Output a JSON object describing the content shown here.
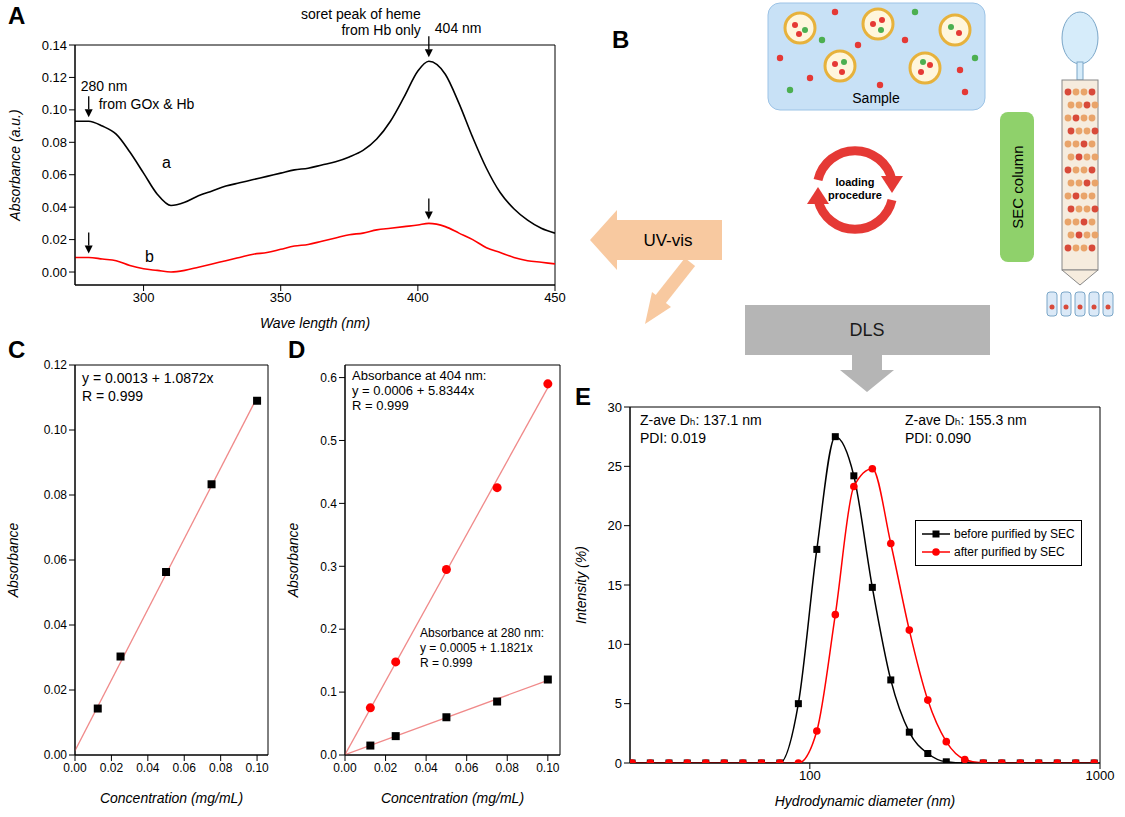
{
  "chart_data": [
    {
      "panel": "A",
      "type": "line",
      "x_label": "Wave length (nm)",
      "y_label": "Absorbance (a.u.)",
      "x": [
        275,
        280,
        285,
        290,
        295,
        300,
        305,
        310,
        315,
        320,
        325,
        330,
        335,
        340,
        345,
        350,
        355,
        360,
        365,
        370,
        375,
        380,
        385,
        390,
        395,
        400,
        404,
        410,
        415,
        420,
        425,
        430,
        435,
        440,
        445,
        450
      ],
      "series": [
        {
          "name": "a",
          "color": "#000000",
          "values": [
            0.093,
            0.093,
            0.09,
            0.085,
            0.074,
            0.061,
            0.048,
            0.041,
            0.043,
            0.047,
            0.05,
            0.053,
            0.055,
            0.057,
            0.059,
            0.061,
            0.063,
            0.064,
            0.066,
            0.068,
            0.071,
            0.075,
            0.082,
            0.093,
            0.108,
            0.124,
            0.13,
            0.122,
            0.104,
            0.083,
            0.064,
            0.049,
            0.039,
            0.032,
            0.027,
            0.024
          ]
        },
        {
          "name": "b",
          "color": "#ff0000",
          "values": [
            0.009,
            0.009,
            0.008,
            0.007,
            0.004,
            0.002,
            0.001,
            0,
            0.001,
            0.003,
            0.005,
            0.007,
            0.009,
            0.011,
            0.012,
            0.014,
            0.016,
            0.017,
            0.019,
            0.021,
            0.023,
            0.024,
            0.026,
            0.027,
            0.028,
            0.029,
            0.03,
            0.028,
            0.024,
            0.02,
            0.015,
            0.012,
            0.009,
            0.007,
            0.006,
            0.005
          ]
        }
      ],
      "xlim": [
        275,
        450
      ],
      "xticks": [
        300,
        350,
        400,
        450
      ],
      "ylim": [
        -0.008,
        0.14
      ],
      "yticks": [
        {
          "value": 0,
          "label": "0.00"
        },
        {
          "value": 0.02,
          "label": "0.02"
        },
        {
          "value": 0.04,
          "label": "0.04"
        },
        {
          "value": 0.06,
          "label": "0.06"
        },
        {
          "value": 0.08,
          "label": "0.08"
        },
        {
          "value": 0.1,
          "label": "0.10"
        },
        {
          "value": 0.12,
          "label": "0.12"
        },
        {
          "value": 0.14,
          "label": "0.14"
        }
      ],
      "annotations": [
        {
          "x": 280,
          "series": "a",
          "texts": [
            "280 nm",
            "from GOx & Hb"
          ]
        },
        {
          "x": 404,
          "series": "a",
          "texts": [
            "soret peak of heme",
            "from Hb only",
            "404 nm"
          ]
        },
        {
          "x": 280,
          "series": "b"
        },
        {
          "x": 404,
          "series": "b"
        }
      ]
    },
    {
      "panel": "C",
      "type": "scatter",
      "x_label": "Concentration (mg/mL)",
      "y_label": "Absorbance",
      "x": [
        0.0125,
        0.025,
        0.05,
        0.075,
        0.1
      ],
      "series": [
        {
          "color": "#000000",
          "marker": "square",
          "values": [
            0.0143,
            0.0303,
            0.0563,
            0.0833,
            0.109
          ],
          "fit": {
            "intercept": 0.0013,
            "slope": 1.0872
          },
          "annotations": [
            "y = 0.0013 + 1.0872x",
            "R = 0.999"
          ]
        }
      ],
      "xlim": [
        0,
        0.106
      ],
      "xticks": [
        {
          "value": 0,
          "label": "0.00"
        },
        {
          "value": 0.02,
          "label": "0.02"
        },
        {
          "value": 0.04,
          "label": "0.04"
        },
        {
          "value": 0.06,
          "label": "0.06"
        },
        {
          "value": 0.08,
          "label": "0.08"
        },
        {
          "value": 0.1,
          "label": "0.10"
        }
      ],
      "ylim": [
        0,
        0.12
      ],
      "yticks": [
        {
          "value": 0,
          "label": "0.00"
        },
        {
          "value": 0.02,
          "label": "0.02"
        },
        {
          "value": 0.04,
          "label": "0.04"
        },
        {
          "value": 0.06,
          "label": "0.06"
        },
        {
          "value": 0.08,
          "label": "0.08"
        },
        {
          "value": 0.1,
          "label": "0.10"
        },
        {
          "value": 0.12,
          "label": "0.12"
        }
      ]
    },
    {
      "panel": "D",
      "type": "scatter",
      "x_label": "Concentration (mg/mL)",
      "y_label": "Absorbance",
      "x": [
        0.0125,
        0.025,
        0.05,
        0.075,
        0.1
      ],
      "series": [
        {
          "name": "Absorbance at 404 nm:",
          "color": "#ff0000",
          "marker": "circle",
          "values": [
            0.075,
            0.148,
            0.295,
            0.425,
            0.59
          ],
          "fit": {
            "intercept": 0.0006,
            "slope": 5.8344
          },
          "annotations": [
            "y = 0.0006 + 5.8344x",
            "R = 0.999"
          ]
        },
        {
          "name": "Absorbance at 280 nm:",
          "color": "#000000",
          "marker": "square",
          "values": [
            0.015,
            0.03,
            0.06,
            0.085,
            0.12
          ],
          "fit": {
            "intercept": 0.0005,
            "slope": 1.1821
          },
          "annotations": [
            "y = 0.0005 + 1.1821x",
            "R = 0.999"
          ]
        }
      ],
      "xlim": [
        0,
        0.106
      ],
      "xticks": [
        {
          "value": 0,
          "label": "0.00"
        },
        {
          "value": 0.02,
          "label": "0.02"
        },
        {
          "value": 0.04,
          "label": "0.04"
        },
        {
          "value": 0.06,
          "label": "0.06"
        },
        {
          "value": 0.08,
          "label": "0.08"
        },
        {
          "value": 0.1,
          "label": "0.10"
        }
      ],
      "ylim": [
        0,
        0.62
      ],
      "yticks": [
        {
          "value": 0,
          "label": "0.0"
        },
        {
          "value": 0.1,
          "label": "0.1"
        },
        {
          "value": 0.2,
          "label": "0.2"
        },
        {
          "value": 0.3,
          "label": "0.3"
        },
        {
          "value": 0.4,
          "label": "0.4"
        },
        {
          "value": 0.5,
          "label": "0.5"
        },
        {
          "value": 0.6,
          "label": "0.6"
        }
      ]
    },
    {
      "panel": "E",
      "type": "line",
      "x_label": "Hydrodynamic diameter (nm)",
      "y_label": "Intensity (%)",
      "log": "x",
      "legend": "right",
      "x": [
        24.4,
        28.2,
        32.7,
        37.8,
        43.8,
        50.7,
        58.8,
        68.1,
        78.8,
        91.3,
        105.7,
        122.4,
        141.8,
        164.2,
        190.1,
        220.2,
        255.0,
        295.3,
        342.0,
        396.1,
        458.7,
        531.2,
        615.1,
        712.4,
        825.0,
        955.4
      ],
      "series": [
        {
          "name": "before purified by SEC",
          "color": "#000000",
          "marker": "square",
          "values": [
            0,
            0,
            0,
            0,
            0,
            0,
            0,
            0,
            0,
            5.0,
            18.0,
            27.5,
            24.2,
            14.8,
            7.0,
            2.6,
            0.8,
            0.1,
            0,
            0,
            0,
            0,
            0,
            0,
            0,
            0
          ]
        },
        {
          "name": "after purified by SEC",
          "color": "#ff0000",
          "marker": "circle",
          "values": [
            0,
            0,
            0,
            0,
            0,
            0,
            0,
            0,
            0,
            0,
            2.7,
            12.5,
            23.3,
            24.8,
            18.5,
            11.2,
            5.3,
            1.8,
            0.3,
            0,
            0,
            0,
            0,
            0,
            0,
            0
          ]
        }
      ],
      "xlim": [
        24,
        1000
      ],
      "xticks": [
        100,
        1000
      ],
      "ylim": [
        0,
        30
      ],
      "yticks": [
        0,
        5,
        10,
        15,
        20,
        25,
        30
      ],
      "annotations": [
        "Z-ave Dₕ: 137.1 nm",
        "PDI: 0.019",
        "Z-ave Dₕ: 155.3 nm",
        "PDI: 0.090"
      ]
    }
  ],
  "diagram": {
    "panel": "B",
    "sample": "Sample",
    "cycle": "loading procedure",
    "column": "SEC column",
    "uv_vis": "UV-vis",
    "dls": "DLS"
  }
}
